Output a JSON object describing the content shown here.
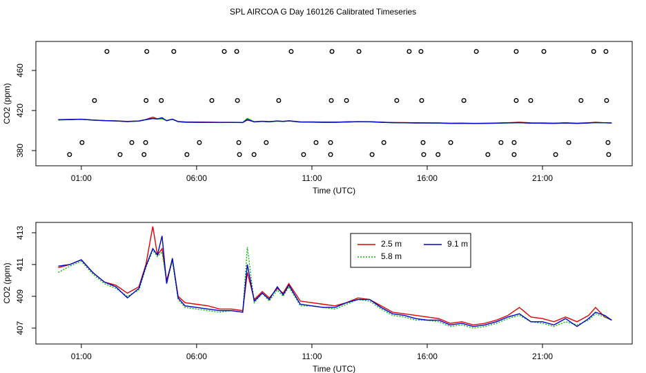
{
  "title": "SPL AIRCOA G  Day 160126  Calibrated Timeseries",
  "chart_data": [
    {
      "type": "line",
      "xlabel": "Time (UTC)",
      "ylabel": "CO2 (ppm)",
      "xlim": [
        -0.97,
        24.89
      ],
      "ylim": [
        364.8,
        489.0
      ],
      "xticks": [
        {
          "value": 1,
          "label": "01:00"
        },
        {
          "value": 6,
          "label": "06:00"
        },
        {
          "value": 11,
          "label": "11:00"
        },
        {
          "value": 16,
          "label": "16:00"
        },
        {
          "value": 21,
          "label": "21:00"
        }
      ],
      "yticks": [
        380,
        420,
        460
      ],
      "x": [
        0,
        0.5,
        1.0,
        1.5,
        2.0,
        2.5,
        3.0,
        3.5,
        3.8,
        4.1,
        4.3,
        4.5,
        4.7,
        4.95,
        5.2,
        5.5,
        6.0,
        6.5,
        7.0,
        7.5,
        8.0,
        8.2,
        8.5,
        8.85,
        9.15,
        9.5,
        9.75,
        10.0,
        10.5,
        11.0,
        11.5,
        12.0,
        12.5,
        13.0,
        13.5,
        14.0,
        14.5,
        15.0,
        15.5,
        16.0,
        16.5,
        17.0,
        17.5,
        18.0,
        18.5,
        19.0,
        19.5,
        20.0,
        20.5,
        21.0,
        21.5,
        22.0,
        22.5,
        23.0,
        23.3,
        23.7,
        24.0
      ],
      "series": [
        {
          "color": "#dd0000",
          "values": [
            410.8,
            411.0,
            411.3,
            410.5,
            409.9,
            409.7,
            409.2,
            409.6,
            411.0,
            413.4,
            411.6,
            412.0,
            410.0,
            411.3,
            409.0,
            408.6,
            408.5,
            408.4,
            408.2,
            408.2,
            408.1,
            410.5,
            408.8,
            409.3,
            408.9,
            409.5,
            409.2,
            409.8,
            408.7,
            408.6,
            408.5,
            408.4,
            408.6,
            408.9,
            408.8,
            408.4,
            408.0,
            407.9,
            407.8,
            407.7,
            407.6,
            407.3,
            407.4,
            407.2,
            407.3,
            407.5,
            407.8,
            408.3,
            407.7,
            407.6,
            407.4,
            407.7,
            407.4,
            407.8,
            408.3,
            407.7,
            407.5
          ]
        },
        {
          "color": "#00bb00",
          "values": [
            410.5,
            410.9,
            411.2,
            410.4,
            409.8,
            409.5,
            409.0,
            409.4,
            410.8,
            411.9,
            411.5,
            411.8,
            409.9,
            411.2,
            408.8,
            408.3,
            408.2,
            408.1,
            408.0,
            408.1,
            408.0,
            412.1,
            408.6,
            409.2,
            408.7,
            409.4,
            409.0,
            409.6,
            408.4,
            408.4,
            408.3,
            408.2,
            408.5,
            408.8,
            408.7,
            408.2,
            407.8,
            407.7,
            407.5,
            407.5,
            407.4,
            407.1,
            407.2,
            407.0,
            407.1,
            407.3,
            407.6,
            407.8,
            407.4,
            407.3,
            407.1,
            407.4,
            407.2,
            407.5,
            407.9,
            407.7,
            407.5
          ]
        },
        {
          "color": "#0000cc",
          "values": [
            410.9,
            411.0,
            411.3,
            410.5,
            409.9,
            409.6,
            408.9,
            409.5,
            410.9,
            412.0,
            411.6,
            412.8,
            409.8,
            411.4,
            408.9,
            408.4,
            408.3,
            408.2,
            408.1,
            408.1,
            408.0,
            411.0,
            408.7,
            409.2,
            408.8,
            409.6,
            409.1,
            409.7,
            408.5,
            408.4,
            408.3,
            408.3,
            408.6,
            408.8,
            408.8,
            408.3,
            407.9,
            407.8,
            407.6,
            407.5,
            407.5,
            407.2,
            407.3,
            407.1,
            407.2,
            407.4,
            407.7,
            407.9,
            407.4,
            407.4,
            407.2,
            407.6,
            407.1,
            407.6,
            408.0,
            407.8,
            407.5
          ]
        }
      ],
      "scatter": {
        "color": "#000000",
        "x": [
          2.11,
          3.84,
          5.01,
          7.2,
          7.74,
          10.1,
          11.87,
          13.04,
          15.22,
          15.73,
          18.13,
          19.86,
          21.06,
          23.22,
          23.75,
          1.57,
          3.81,
          4.47,
          6.66,
          7.77,
          9.56,
          11.84,
          12.5,
          14.68,
          15.76,
          17.59,
          19.86,
          20.49,
          22.67,
          23.78,
          1.03,
          3.19,
          3.79,
          6.12,
          7.83,
          9.02,
          11.18,
          11.81,
          14.12,
          15.82,
          17.02,
          19.2,
          19.77,
          22.14,
          23.84,
          0.49,
          2.68,
          3.72,
          5.58,
          7.86,
          8.49,
          10.64,
          11.81,
          13.61,
          15.85,
          16.47,
          18.63,
          19.77,
          21.57,
          23.87
        ],
        "values": [
          479,
          479,
          479,
          479,
          479,
          479,
          479,
          479,
          479,
          479,
          479,
          479,
          479,
          479,
          479,
          430,
          430,
          430,
          430,
          430,
          430,
          430,
          430,
          430,
          430,
          430,
          430,
          430,
          430,
          430,
          388,
          388,
          388,
          388,
          388,
          388,
          388,
          388,
          388,
          388,
          388,
          388,
          388,
          388,
          388,
          376,
          376,
          376,
          376,
          376,
          376,
          376,
          376,
          376,
          376,
          376,
          376,
          376,
          376,
          376
        ]
      }
    },
    {
      "type": "line",
      "xlabel": "Time (UTC)",
      "ylabel": "CO2 (ppm)",
      "xlim": [
        -0.97,
        24.89
      ],
      "ylim": [
        406.0,
        413.65
      ],
      "xticks": [
        {
          "value": 1,
          "label": "01:00"
        },
        {
          "value": 6,
          "label": "06:00"
        },
        {
          "value": 11,
          "label": "11:00"
        },
        {
          "value": 16,
          "label": "16:00"
        },
        {
          "value": 21,
          "label": "21:00"
        }
      ],
      "yticks": [
        407,
        409,
        411,
        413
      ],
      "legend": "top",
      "x": [
        0,
        0.5,
        1.0,
        1.5,
        2.0,
        2.5,
        3.0,
        3.5,
        3.8,
        4.1,
        4.3,
        4.5,
        4.7,
        4.95,
        5.2,
        5.5,
        6.0,
        6.5,
        7.0,
        7.5,
        8.0,
        8.2,
        8.5,
        8.85,
        9.15,
        9.5,
        9.75,
        10.0,
        10.5,
        11.0,
        11.5,
        12.0,
        12.5,
        13.0,
        13.5,
        14.0,
        14.5,
        15.0,
        15.5,
        16.0,
        16.5,
        17.0,
        17.5,
        18.0,
        18.5,
        19.0,
        19.5,
        20.0,
        20.5,
        21.0,
        21.5,
        22.0,
        22.5,
        23.0,
        23.3,
        23.7,
        24.0
      ],
      "series": [
        {
          "name": "2.5 m",
          "color": "#dd0000",
          "linestyle": "solid",
          "values": [
            410.8,
            411.0,
            411.3,
            410.5,
            409.9,
            409.7,
            409.2,
            409.6,
            411.0,
            413.4,
            411.6,
            412.0,
            410.0,
            411.3,
            409.0,
            408.6,
            408.5,
            408.4,
            408.2,
            408.2,
            408.1,
            410.5,
            408.8,
            409.3,
            408.9,
            409.5,
            409.2,
            409.8,
            408.7,
            408.6,
            408.5,
            408.4,
            408.6,
            408.9,
            408.8,
            408.4,
            408.0,
            407.9,
            407.8,
            407.7,
            407.6,
            407.3,
            407.4,
            407.2,
            407.3,
            407.5,
            407.8,
            408.3,
            407.7,
            407.6,
            407.4,
            407.7,
            407.4,
            407.8,
            408.3,
            407.7,
            407.5
          ]
        },
        {
          "name": "5.8 m",
          "color": "#00bb00",
          "linestyle": "dotted",
          "values": [
            410.5,
            410.9,
            411.2,
            410.4,
            409.8,
            409.5,
            409.0,
            409.4,
            410.8,
            411.9,
            411.5,
            411.8,
            409.9,
            411.2,
            408.8,
            408.3,
            408.2,
            408.1,
            408.0,
            408.1,
            408.0,
            412.1,
            408.6,
            409.2,
            408.7,
            409.4,
            409.0,
            409.6,
            408.4,
            408.4,
            408.3,
            408.2,
            408.5,
            408.8,
            408.7,
            408.2,
            407.8,
            407.7,
            407.5,
            407.5,
            407.4,
            407.1,
            407.2,
            407.0,
            407.1,
            407.3,
            407.6,
            407.8,
            407.4,
            407.3,
            407.1,
            407.4,
            407.2,
            407.5,
            407.9,
            407.7,
            407.5
          ]
        },
        {
          "name": "9.1 m",
          "color": "#0000cc",
          "linestyle": "solid",
          "values": [
            410.9,
            411.0,
            411.3,
            410.5,
            409.9,
            409.6,
            408.9,
            409.5,
            410.9,
            412.0,
            411.6,
            412.8,
            409.8,
            411.4,
            408.9,
            408.4,
            408.3,
            408.2,
            408.1,
            408.1,
            408.0,
            411.0,
            408.7,
            409.2,
            408.8,
            409.6,
            409.1,
            409.7,
            408.5,
            408.4,
            408.3,
            408.3,
            408.6,
            408.8,
            408.8,
            408.3,
            407.9,
            407.8,
            407.6,
            407.5,
            407.5,
            407.2,
            407.3,
            407.1,
            407.2,
            407.4,
            407.7,
            407.9,
            407.4,
            407.4,
            407.2,
            407.6,
            407.1,
            407.6,
            408.0,
            407.8,
            407.5
          ]
        }
      ]
    }
  ]
}
